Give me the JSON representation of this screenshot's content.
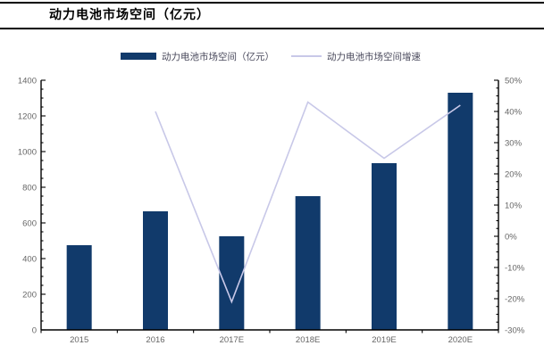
{
  "header": {
    "title": "动力电池市场空间（亿元）"
  },
  "legend": {
    "items": [
      {
        "label": "动力电池市场空间（亿元）",
        "swatch": "bar-swatch",
        "color": "#113a6b"
      },
      {
        "label": "动力电池市场空间增速",
        "swatch": "line-swatch",
        "color": "#c8c8e8"
      }
    ]
  },
  "chart_data": {
    "type": "bar",
    "title": "动力电池市场空间（亿元）",
    "categories": [
      "2015",
      "2016",
      "2017E",
      "2018E",
      "2019E",
      "2020E"
    ],
    "series": [
      {
        "name": "动力电池市场空间（亿元）",
        "type": "bar",
        "axis": "left",
        "color": "#113a6b",
        "values": [
          475,
          665,
          525,
          750,
          935,
          1330
        ]
      },
      {
        "name": "动力电池市场空间增速",
        "type": "line",
        "axis": "right",
        "color": "#c8c8e8",
        "unit": "%",
        "values": [
          null,
          40,
          -21,
          43,
          25,
          42
        ]
      }
    ],
    "left_axis": {
      "min": 0,
      "max": 1400,
      "major": 200,
      "minor": 50,
      "tick_labels": [
        "0",
        "200",
        "400",
        "600",
        "800",
        "1000",
        "1200",
        "1400"
      ]
    },
    "right_axis": {
      "min": -30,
      "max": 50,
      "major": 10,
      "minor": 2.5,
      "tick_labels": [
        "-30%",
        "-20%",
        "-10%",
        "0%",
        "10%",
        "20%",
        "30%",
        "40%",
        "50%"
      ]
    },
    "grid": false,
    "legend_position": "top",
    "axis_label_color": "#666666",
    "axis_line_color": "#000000"
  }
}
